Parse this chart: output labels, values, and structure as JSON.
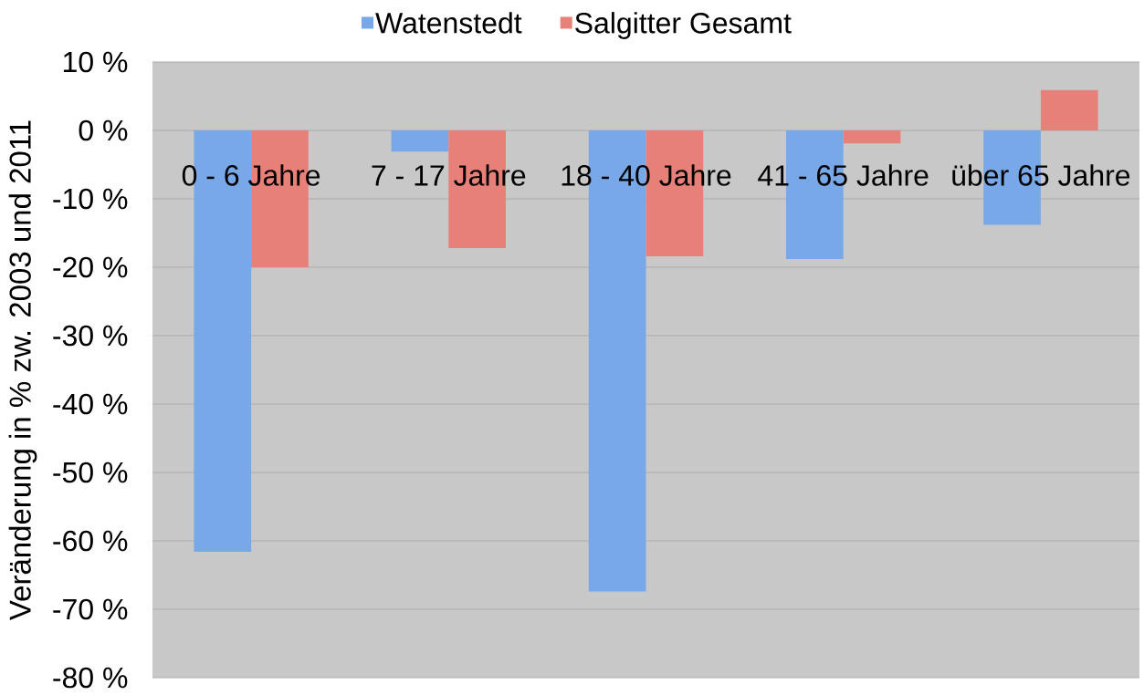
{
  "chart_data": {
    "type": "bar",
    "categories": [
      "0 - 6 Jahre",
      "7 - 17 Jahre",
      "18 - 40 Jahre",
      "41 - 65 Jahre",
      "über 65 Jahre"
    ],
    "series": [
      {
        "name": "Watenstedt",
        "color": "#78a8e8",
        "values": [
          -61.6,
          -3.1,
          -67.4,
          -18.8,
          -13.8
        ]
      },
      {
        "name": "Salgitter Gesamt",
        "color": "#e8807a",
        "values": [
          -20.0,
          -17.2,
          -18.4,
          -1.9,
          5.9
        ]
      }
    ],
    "ylabel": "Veränderung in % zw. 2003 und 2011",
    "ylim": [
      -80,
      10
    ],
    "yticks": [
      {
        "value": 10,
        "label": "10 %"
      },
      {
        "value": 0,
        "label": "0 %"
      },
      {
        "value": -10,
        "label": "-10 %"
      },
      {
        "value": -20,
        "label": "-20 %"
      },
      {
        "value": -30,
        "label": "-30 %"
      },
      {
        "value": -40,
        "label": "-40 %"
      },
      {
        "value": -50,
        "label": "-50 %"
      },
      {
        "value": -60,
        "label": "-60 %"
      },
      {
        "value": -70,
        "label": "-70 %"
      },
      {
        "value": -80,
        "label": "-80 %"
      }
    ],
    "grid": "y",
    "legend": "top"
  }
}
